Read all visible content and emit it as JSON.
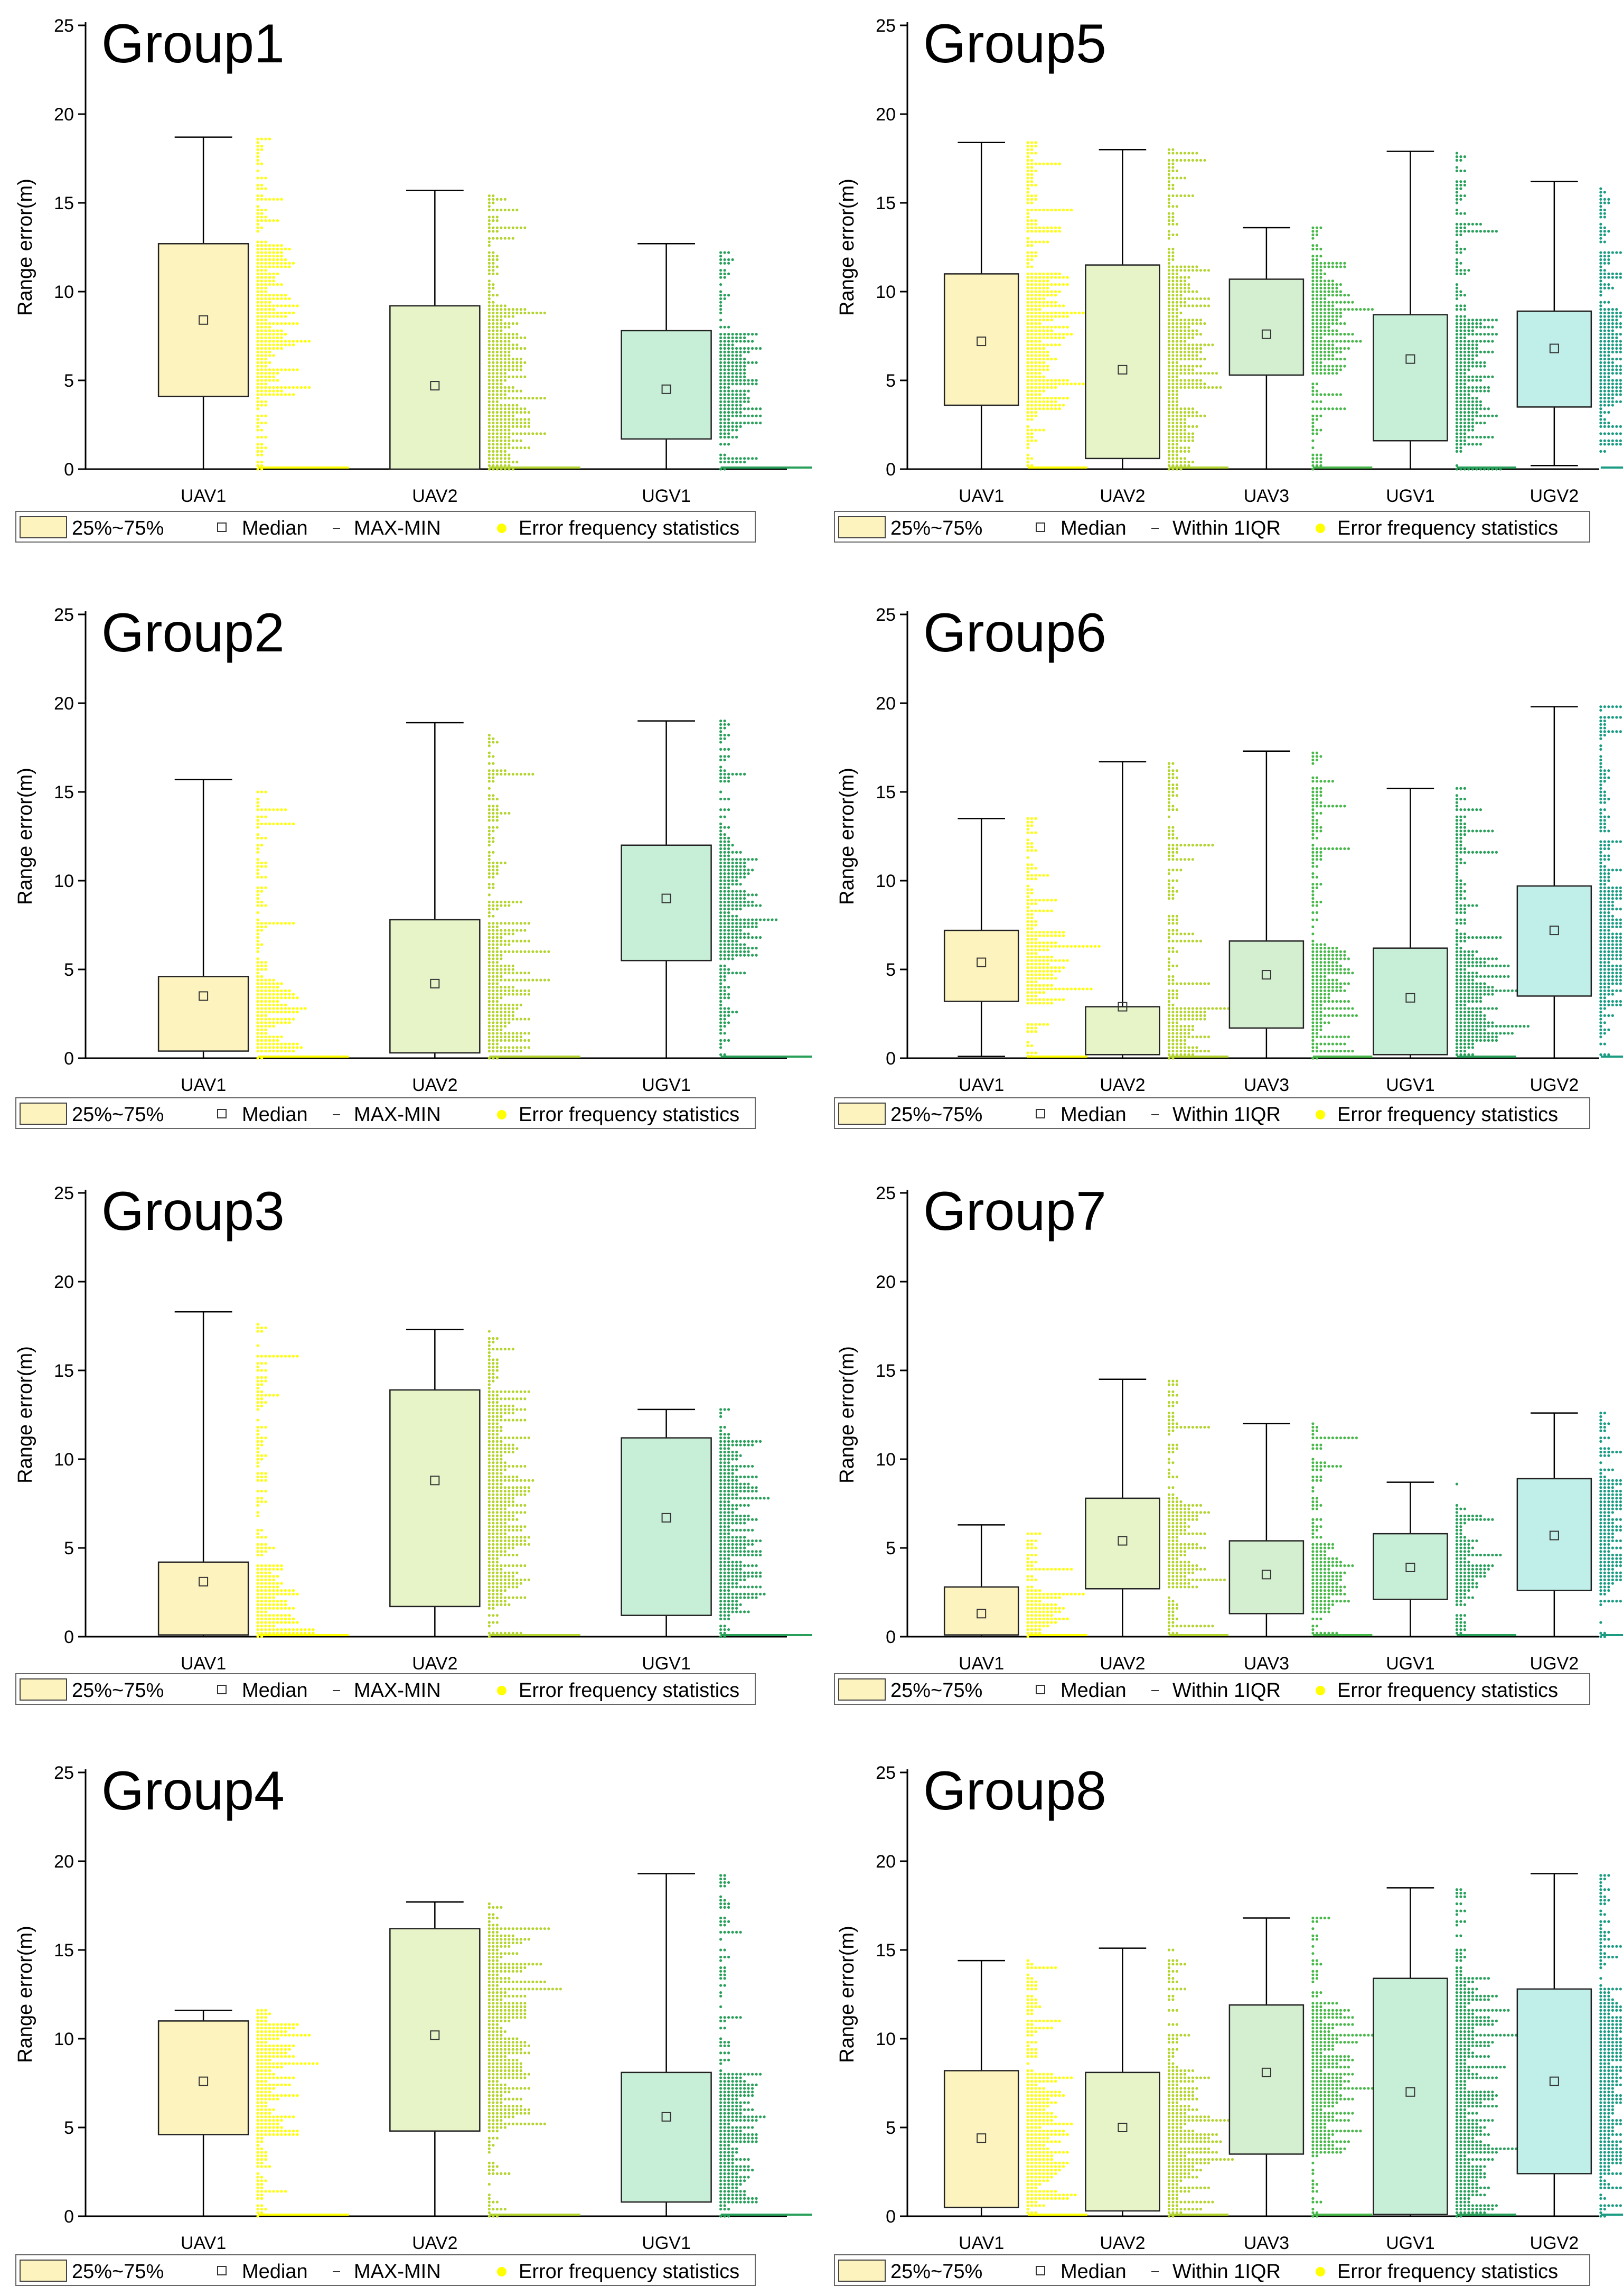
{
  "figure": {
    "y_axis_label": "Range error(m)"
  },
  "colors": {
    "UAV1": "#fdf3bf",
    "UAV2": "#e6f4c8",
    "UAV3": "#d4efd0",
    "UGV1": "#c7eed6",
    "UGV2": "#c0eee8",
    "dot_UAV1": "#ffff00",
    "dot_UAV2": "#b4d430",
    "dot_UAV3": "#49b84a",
    "dot_UGV1": "#28a05a",
    "dot_UGV2": "#1a9c83"
  },
  "legend_left": {
    "box": "25%~75%",
    "median": "Median",
    "whisker": "MAX-MIN",
    "dots": "Error frequency statistics"
  },
  "legend_right": {
    "box": "25%~75%",
    "median": "Median",
    "whisker": "Within 1IQR",
    "dots": "Error frequency statistics"
  },
  "chart_data": [
    {
      "type": "box",
      "title": "Group1",
      "ylabel": "Range error(m)",
      "ylim": [
        0,
        25
      ],
      "yticks": [
        0,
        5,
        10,
        15,
        20,
        25
      ],
      "categories": [
        "UAV1",
        "UAV2",
        "UGV1"
      ],
      "boxes": [
        {
          "name": "UAV1",
          "min": 0,
          "q1": 4.1,
          "median": 8.4,
          "q3": 12.7,
          "max": 18.7
        },
        {
          "name": "UAV2",
          "min": 0,
          "q1": 0,
          "median": 4.7,
          "q3": 9.2,
          "max": 15.7
        },
        {
          "name": "UGV1",
          "min": 0,
          "q1": 1.7,
          "median": 4.5,
          "q3": 7.8,
          "max": 12.7
        }
      ]
    },
    {
      "type": "box",
      "title": "Group5",
      "ylabel": "Range error(m)",
      "ylim": [
        0,
        25
      ],
      "yticks": [
        0,
        5,
        10,
        15,
        20,
        25
      ],
      "categories": [
        "UAV1",
        "UAV2",
        "UAV3",
        "UGV1",
        "UGV2"
      ],
      "boxes": [
        {
          "name": "UAV1",
          "min": 0,
          "q1": 3.6,
          "median": 7.2,
          "q3": 11.0,
          "max": 18.4
        },
        {
          "name": "UAV2",
          "min": 0,
          "q1": 0.6,
          "median": 5.6,
          "q3": 11.5,
          "max": 18.0
        },
        {
          "name": "UAV3",
          "min": 0,
          "q1": 5.3,
          "median": 7.6,
          "q3": 10.7,
          "max": 13.6
        },
        {
          "name": "UGV1",
          "min": 0,
          "q1": 1.6,
          "median": 6.2,
          "q3": 8.7,
          "max": 17.9
        },
        {
          "name": "UGV2",
          "min": 0.2,
          "q1": 3.5,
          "median": 6.8,
          "q3": 8.9,
          "max": 16.2
        }
      ]
    },
    {
      "type": "box",
      "title": "Group2",
      "ylabel": "Range error(m)",
      "ylim": [
        0,
        25
      ],
      "yticks": [
        0,
        5,
        10,
        15,
        20,
        25
      ],
      "categories": [
        "UAV1",
        "UAV2",
        "UGV1"
      ],
      "boxes": [
        {
          "name": "UAV1",
          "min": 0,
          "q1": 0.4,
          "median": 3.5,
          "q3": 4.6,
          "max": 15.7
        },
        {
          "name": "UAV2",
          "min": 0,
          "q1": 0.3,
          "median": 4.2,
          "q3": 7.8,
          "max": 18.9
        },
        {
          "name": "UGV1",
          "min": 0,
          "q1": 5.5,
          "median": 9.0,
          "q3": 12.0,
          "max": 19.0
        }
      ]
    },
    {
      "type": "box",
      "title": "Group6",
      "ylabel": "Range error(m)",
      "ylim": [
        0,
        25
      ],
      "yticks": [
        0,
        5,
        10,
        15,
        20,
        25
      ],
      "categories": [
        "UAV1",
        "UAV2",
        "UAV3",
        "UGV1",
        "UGV2"
      ],
      "boxes": [
        {
          "name": "UAV1",
          "min": 0.1,
          "q1": 3.2,
          "median": 5.4,
          "q3": 7.2,
          "max": 13.5
        },
        {
          "name": "UAV2",
          "min": 0,
          "q1": 0.2,
          "median": 2.9,
          "q3": 2.9,
          "max": 16.7
        },
        {
          "name": "UAV3",
          "min": 0,
          "q1": 1.7,
          "median": 4.7,
          "q3": 6.6,
          "max": 17.3
        },
        {
          "name": "UGV1",
          "min": 0,
          "q1": 0.2,
          "median": 3.4,
          "q3": 6.2,
          "max": 15.2
        },
        {
          "name": "UGV2",
          "min": 0,
          "q1": 3.5,
          "median": 7.2,
          "q3": 9.7,
          "max": 19.8
        }
      ]
    },
    {
      "type": "box",
      "title": "Group3",
      "ylabel": "Range error(m)",
      "ylim": [
        0,
        25
      ],
      "yticks": [
        0,
        5,
        10,
        15,
        20,
        25
      ],
      "categories": [
        "UAV1",
        "UAV2",
        "UGV1"
      ],
      "boxes": [
        {
          "name": "UAV1",
          "min": 0,
          "q1": 0.1,
          "median": 3.1,
          "q3": 4.2,
          "max": 18.3
        },
        {
          "name": "UAV2",
          "min": 0,
          "q1": 1.7,
          "median": 8.8,
          "q3": 13.9,
          "max": 17.3
        },
        {
          "name": "UGV1",
          "min": 0,
          "q1": 1.2,
          "median": 6.7,
          "q3": 11.2,
          "max": 12.8
        }
      ]
    },
    {
      "type": "box",
      "title": "Group7",
      "ylabel": "Range error(m)",
      "ylim": [
        0,
        25
      ],
      "yticks": [
        0,
        5,
        10,
        15,
        20,
        25
      ],
      "categories": [
        "UAV1",
        "UAV2",
        "UAV3",
        "UGV1",
        "UGV2"
      ],
      "boxes": [
        {
          "name": "UAV1",
          "min": 0,
          "q1": 0.1,
          "median": 1.3,
          "q3": 2.8,
          "max": 6.3
        },
        {
          "name": "UAV2",
          "min": 0,
          "q1": 2.7,
          "median": 5.4,
          "q3": 7.8,
          "max": 14.5
        },
        {
          "name": "UAV3",
          "min": 0,
          "q1": 1.3,
          "median": 3.5,
          "q3": 5.4,
          "max": 12.0
        },
        {
          "name": "UGV1",
          "min": 0,
          "q1": 2.1,
          "median": 3.9,
          "q3": 5.8,
          "max": 8.7
        },
        {
          "name": "UGV2",
          "min": 0,
          "q1": 2.6,
          "median": 5.7,
          "q3": 8.9,
          "max": 12.6
        }
      ]
    },
    {
      "type": "box",
      "title": "Group4",
      "ylabel": "Range error(m)",
      "ylim": [
        0,
        25
      ],
      "yticks": [
        0,
        5,
        10,
        15,
        20,
        25
      ],
      "categories": [
        "UAV1",
        "UAV2",
        "UGV1"
      ],
      "boxes": [
        {
          "name": "UAV1",
          "min": 0,
          "q1": 4.6,
          "median": 7.6,
          "q3": 11.0,
          "max": 11.6
        },
        {
          "name": "UAV2",
          "min": 0,
          "q1": 4.8,
          "median": 10.2,
          "q3": 16.2,
          "max": 17.7
        },
        {
          "name": "UGV1",
          "min": 0,
          "q1": 0.8,
          "median": 5.6,
          "q3": 8.1,
          "max": 19.3
        }
      ]
    },
    {
      "type": "box",
      "title": "Group8",
      "ylabel": "Range error(m)",
      "ylim": [
        0,
        25
      ],
      "yticks": [
        0,
        5,
        10,
        15,
        20,
        25
      ],
      "categories": [
        "UAV1",
        "UAV2",
        "UAV3",
        "UGV1",
        "UGV2"
      ],
      "boxes": [
        {
          "name": "UAV1",
          "min": 0,
          "q1": 0.5,
          "median": 4.4,
          "q3": 8.2,
          "max": 14.4
        },
        {
          "name": "UAV2",
          "min": 0,
          "q1": 0.3,
          "median": 5.0,
          "q3": 8.1,
          "max": 15.1
        },
        {
          "name": "UAV3",
          "min": 0,
          "q1": 3.5,
          "median": 8.1,
          "q3": 11.9,
          "max": 16.8
        },
        {
          "name": "UGV1",
          "min": 0,
          "q1": 0.1,
          "median": 7.0,
          "q3": 13.4,
          "max": 18.5
        },
        {
          "name": "UGV2",
          "min": 0,
          "q1": 2.4,
          "median": 7.6,
          "q3": 12.8,
          "max": 19.3
        }
      ]
    }
  ]
}
